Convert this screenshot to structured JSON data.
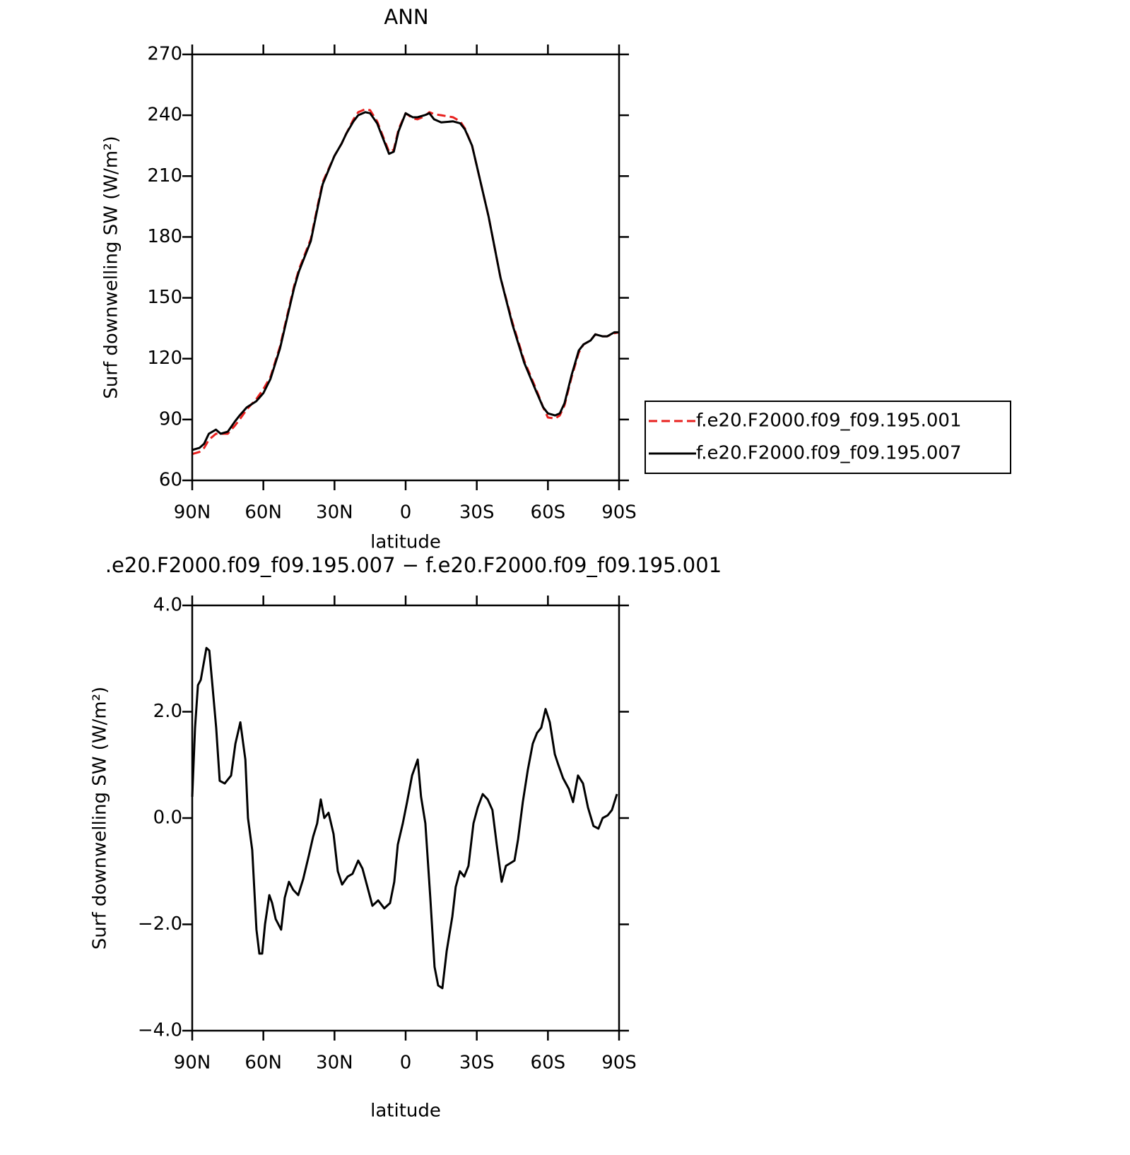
{
  "chart_data": [
    {
      "type": "line",
      "title": "ANN",
      "x_label": "latitude",
      "y_label": "Surf downwelling SW (W/m²)",
      "xlim": [
        90,
        -90
      ],
      "xticks": [
        {
          "value": 90,
          "label": "90N"
        },
        {
          "value": 60,
          "label": "60N"
        },
        {
          "value": 30,
          "label": "30N"
        },
        0,
        {
          "value": -30,
          "label": "30S"
        },
        {
          "value": -60,
          "label": "60S"
        },
        {
          "value": -90,
          "label": "90S"
        }
      ],
      "ylim": [
        60,
        270
      ],
      "yticks": [
        60,
        90,
        120,
        150,
        180,
        210,
        240,
        270
      ],
      "legend": "right",
      "x": [
        90,
        87,
        85,
        83,
        80,
        78,
        75,
        72,
        70,
        67,
        63,
        60,
        57,
        53,
        50,
        47,
        45,
        40,
        37,
        35,
        30,
        27,
        25,
        22,
        20,
        17,
        15,
        12,
        10,
        7,
        5,
        3,
        0,
        -3,
        -5,
        -8,
        -10,
        -12,
        -15,
        -20,
        -23,
        -25,
        -28,
        -30,
        -35,
        -40,
        -45,
        -50,
        -55,
        -58,
        -60,
        -63,
        -65,
        -67,
        -70,
        -73,
        -75,
        -78,
        -80,
        -83,
        -85,
        -88,
        -90
      ],
      "series": [
        {
          "name": "f.e20.F2000.f09_f09.195.001",
          "color": "#e8201e",
          "linestyle": "dashed",
          "values": [
            73,
            74,
            76,
            80,
            83,
            83,
            83,
            87,
            90,
            95,
            100,
            105,
            111,
            126,
            141,
            156,
            164,
            179,
            196,
            207,
            220,
            226,
            231,
            238,
            241.5,
            243,
            242.5,
            237,
            231,
            222,
            223,
            233,
            241,
            238.5,
            238,
            239.5,
            241.5,
            240.5,
            240,
            239,
            237,
            233.5,
            225,
            215,
            190,
            160,
            138,
            119,
            105,
            96,
            91,
            90.5,
            92,
            97,
            111,
            123,
            127,
            129,
            132,
            131,
            131,
            132.5,
            133
          ]
        },
        {
          "name": "f.e20.F2000.f09_f09.195.007",
          "color": "#000000",
          "linestyle": "solid",
          "values": [
            75,
            76,
            78,
            83,
            85,
            83,
            84,
            89,
            92,
            96,
            99,
            103,
            110,
            125,
            140,
            155,
            163,
            178,
            195,
            206,
            220,
            226,
            231,
            237,
            240,
            241.5,
            241,
            236,
            230,
            221,
            222,
            232,
            241,
            239,
            239,
            240,
            241,
            238,
            236.5,
            237,
            236,
            233,
            225,
            215,
            190,
            160,
            137,
            118,
            104,
            96,
            93,
            92,
            93,
            98,
            112,
            124,
            127,
            129,
            132,
            131,
            131,
            133,
            133
          ]
        }
      ]
    },
    {
      "type": "line",
      "title": ".e20.F2000.f09_f09.195.007 − f.e20.F2000.f09_f09.195.001",
      "x_label": "latitude",
      "y_label": "Surf downwelling SW (W/m²)",
      "xlim": [
        90,
        -90
      ],
      "xticks": [
        {
          "value": 90,
          "label": "90N"
        },
        {
          "value": 60,
          "label": "60N"
        },
        {
          "value": 30,
          "label": "30N"
        },
        0,
        {
          "value": -30,
          "label": "30S"
        },
        {
          "value": -60,
          "label": "60S"
        },
        {
          "value": -90,
          "label": "90S"
        }
      ],
      "ylim": [
        -4,
        4
      ],
      "yticks": [
        {
          "value": -4,
          "label": "−4.0"
        },
        {
          "value": -2,
          "label": "−2.0"
        },
        {
          "value": 0,
          "label": "0.0"
        },
        {
          "value": 2,
          "label": "2.0"
        },
        {
          "value": 4,
          "label": "4.0"
        }
      ],
      "x": [
        90,
        88.8,
        87.6,
        86.4,
        85.2,
        84,
        82.8,
        81.7,
        79.9,
        78.4,
        76.3,
        73.6,
        71.8,
        69.7,
        67.6,
        66.5,
        64.7,
        62.9,
        61.7,
        60.5,
        59.3,
        57.5,
        56.3,
        54.8,
        52.5,
        51,
        49.2,
        47.4,
        45.3,
        43.2,
        40.8,
        39,
        37.3,
        35.8,
        34.3,
        32.5,
        30.4,
        28.6,
        26.8,
        24.4,
        22.4,
        20,
        18.2,
        16.4,
        14,
        11.6,
        9,
        6.6,
        4.8,
        3.3,
        1.2,
        -0.6,
        -2.7,
        -5.1,
        -6.5,
        -8.3,
        -10.4,
        -12.2,
        -13.7,
        -15.5,
        -17.3,
        -19.7,
        -21.1,
        -22.9,
        -24.7,
        -26.5,
        -28.6,
        -30.4,
        -32.5,
        -34.6,
        -36.6,
        -38.4,
        -40.5,
        -42.3,
        -44.1,
        -45.9,
        -47.4,
        -49.4,
        -51.5,
        -53.6,
        -55.4,
        -57.2,
        -59,
        -60.8,
        -62.9,
        -64.4,
        -66.4,
        -68.8,
        -70.6,
        -72.7,
        -74.8,
        -76.9,
        -79.2,
        -81.3,
        -83.1,
        -85.2,
        -87,
        -89.1
      ],
      "series": [
        {
          "name": null,
          "color": "#000000",
          "linestyle": "solid",
          "values": [
            0.4,
            1.7,
            2.5,
            2.6,
            2.9,
            3.2,
            3.15,
            2.6,
            1.7,
            0.7,
            0.65,
            0.8,
            1.4,
            1.8,
            1.1,
            0.0,
            -0.6,
            -2.1,
            -2.55,
            -2.55,
            -2.0,
            -1.45,
            -1.6,
            -1.9,
            -2.1,
            -1.5,
            -1.2,
            -1.35,
            -1.45,
            -1.15,
            -0.7,
            -0.35,
            -0.1,
            0.35,
            0.0,
            0.1,
            -0.3,
            -1.0,
            -1.25,
            -1.1,
            -1.05,
            -0.8,
            -0.95,
            -1.25,
            -1.65,
            -1.55,
            -1.7,
            -1.6,
            -1.2,
            -0.5,
            -0.1,
            0.3,
            0.8,
            1.1,
            0.4,
            -0.1,
            -1.5,
            -2.8,
            -3.15,
            -3.2,
            -2.5,
            -1.85,
            -1.3,
            -1.0,
            -1.1,
            -0.9,
            -0.1,
            0.2,
            0.45,
            0.35,
            0.15,
            -0.5,
            -1.2,
            -0.9,
            -0.85,
            -0.8,
            -0.4,
            0.3,
            0.9,
            1.4,
            1.6,
            1.7,
            2.05,
            1.8,
            1.2,
            1.0,
            0.75,
            0.55,
            0.3,
            0.8,
            0.65,
            0.2,
            -0.15,
            -0.2,
            0.0,
            0.05,
            0.15,
            0.45
          ]
        }
      ]
    }
  ]
}
